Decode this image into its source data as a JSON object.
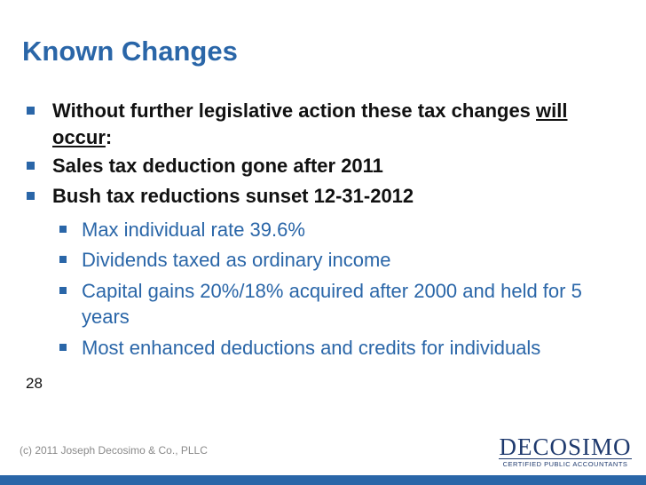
{
  "slide": {
    "title": "Known Changes",
    "bullets": [
      {
        "text_a": "Without further legislative action these tax changes ",
        "text_u": "will occur",
        "text_b": ":"
      },
      {
        "text": "Sales tax deduction gone after 2011"
      },
      {
        "text": "Bush tax reductions sunset 12-31-2012"
      }
    ],
    "sub_bullets": [
      {
        "text": "Max individual rate 39.6%"
      },
      {
        "text": "Dividends taxed as ordinary income"
      },
      {
        "text": "Capital gains 20%/18% acquired after 2000 and held for 5 years"
      },
      {
        "text": "Most enhanced deductions and credits for individuals"
      }
    ],
    "slide_number": "28",
    "footer": "(c) 2011 Joseph Decosimo & Co., PLLC",
    "logo": {
      "name": "DECOSIMO",
      "tagline": "CERTIFIED PUBLIC ACCOUNTANTS"
    },
    "colors": {
      "accent": "#2a66a8",
      "text": "#111111",
      "logo": "#1f3a6e"
    }
  }
}
